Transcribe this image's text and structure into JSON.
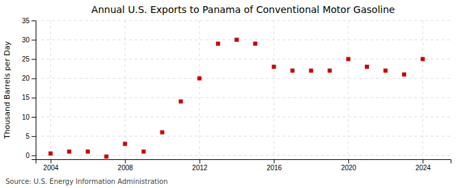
{
  "chart_data": {
    "type": "scatter",
    "title": "Annual U.S. Exports to Panama of Conventional Motor Gasoline",
    "ylabel": "Thousand Barrels per Day",
    "source": "Source: U.S. Energy Information Administration",
    "x": [
      2004,
      2005,
      2006,
      2007,
      2008,
      2009,
      2010,
      2011,
      2012,
      2013,
      2014,
      2015,
      2016,
      2017,
      2018,
      2019,
      2020,
      2021,
      2022,
      2023,
      2024
    ],
    "values": [
      0.5,
      1.0,
      1.0,
      -0.3,
      3.0,
      1.0,
      6.0,
      14.0,
      20.0,
      29.0,
      30.0,
      29.0,
      23.0,
      22.0,
      22.0,
      22.0,
      25.0,
      23.0,
      22.0,
      21.0,
      25.0
    ],
    "color": "#cc0000",
    "marker": "square",
    "xlim": [
      2003.2,
      2025.5
    ],
    "ylim": [
      -1,
      35
    ],
    "xticks": [
      2004,
      2008,
      2012,
      2016,
      2020,
      2024
    ],
    "yticks": [
      0,
      5,
      10,
      15,
      20,
      25,
      30,
      35
    ],
    "grid": true
  }
}
